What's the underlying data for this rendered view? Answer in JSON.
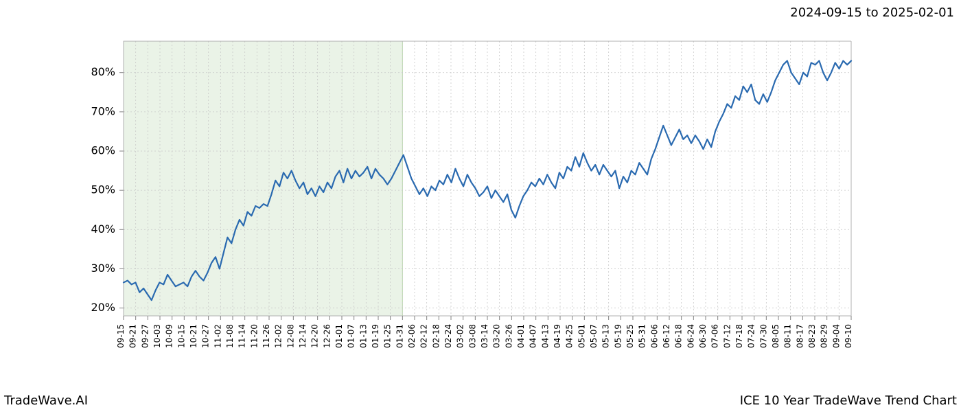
{
  "header": {
    "date_range": "2024-09-15 to 2025-02-01"
  },
  "footer": {
    "left": "TradeWave.AI",
    "right": "ICE 10 Year TradeWave Trend Chart"
  },
  "chart": {
    "type": "line",
    "background_color": "#ffffff",
    "line_color": "#2a6ab0",
    "line_width": 2.2,
    "grid_color": "#c8c8c8",
    "grid_dash": "2,3",
    "highlight": {
      "fill": "#d9ead3",
      "fill_opacity": 0.55,
      "stroke": "#b6d7a8",
      "stroke_width": 1,
      "x_start_index": 0,
      "x_end_index": 23
    },
    "yaxis": {
      "ylim": [
        18,
        88
      ],
      "ticks": [
        20,
        30,
        40,
        50,
        60,
        70,
        80
      ],
      "tick_labels": [
        "20%",
        "30%",
        "40%",
        "50%",
        "60%",
        "70%",
        "80%"
      ],
      "label_fontsize": 16
    },
    "xaxis": {
      "ticks": [
        "09-15",
        "09-21",
        "09-27",
        "10-03",
        "10-09",
        "10-15",
        "10-21",
        "10-27",
        "11-02",
        "11-08",
        "11-14",
        "11-20",
        "11-26",
        "12-02",
        "12-08",
        "12-14",
        "12-20",
        "12-26",
        "01-01",
        "01-07",
        "01-13",
        "01-19",
        "01-25",
        "01-31",
        "02-06",
        "02-12",
        "02-18",
        "02-24",
        "03-02",
        "03-08",
        "03-14",
        "03-20",
        "03-26",
        "04-01",
        "04-07",
        "04-13",
        "04-19",
        "04-25",
        "05-01",
        "05-07",
        "05-13",
        "05-19",
        "05-25",
        "05-31",
        "06-06",
        "06-12",
        "06-18",
        "06-24",
        "06-30",
        "07-06",
        "07-12",
        "07-18",
        "07-24",
        "07-30",
        "08-05",
        "08-11",
        "08-17",
        "08-23",
        "08-29",
        "09-04",
        "09-10"
      ],
      "label_fontsize": 12,
      "rotation": 90
    },
    "series": {
      "values": [
        26.5,
        27.0,
        26.0,
        26.5,
        24.0,
        25.0,
        23.5,
        22.0,
        24.5,
        26.5,
        26.0,
        28.5,
        27.0,
        25.5,
        26.0,
        26.5,
        25.5,
        28.0,
        29.5,
        28.0,
        27.0,
        29.0,
        31.5,
        33.0,
        30.0,
        34.0,
        38.0,
        36.5,
        40.0,
        42.5,
        41.0,
        44.5,
        43.5,
        46.0,
        45.5,
        46.5,
        46.0,
        49.0,
        52.5,
        51.0,
        54.5,
        53.0,
        55.0,
        52.5,
        50.5,
        52.0,
        49.0,
        50.5,
        48.5,
        51.0,
        49.5,
        52.0,
        50.5,
        53.5,
        55.0,
        52.0,
        55.5,
        53.0,
        55.0,
        53.5,
        54.5,
        56.0,
        53.0,
        55.5,
        54.0,
        53.0,
        51.5,
        53.0,
        55.0,
        57.0,
        59.0,
        56.0,
        53.0,
        51.0,
        49.0,
        50.5,
        48.5,
        51.0,
        50.0,
        52.5,
        51.5,
        54.0,
        52.0,
        55.5,
        53.0,
        51.0,
        54.0,
        52.0,
        50.5,
        48.5,
        49.5,
        51.0,
        48.0,
        50.0,
        48.5,
        47.0,
        49.0,
        45.0,
        43.0,
        46.0,
        48.5,
        50.0,
        52.0,
        51.0,
        53.0,
        51.5,
        54.0,
        52.0,
        50.5,
        54.5,
        53.0,
        56.0,
        55.0,
        58.5,
        56.0,
        59.5,
        57.0,
        55.0,
        56.5,
        54.0,
        56.5,
        55.0,
        53.5,
        55.0,
        50.5,
        53.5,
        52.0,
        55.0,
        54.0,
        57.0,
        55.5,
        54.0,
        58.0,
        60.5,
        63.5,
        66.5,
        64.0,
        61.5,
        63.5,
        65.5,
        63.0,
        64.0,
        62.0,
        64.0,
        62.5,
        60.5,
        63.0,
        61.0,
        65.0,
        67.5,
        69.5,
        72.0,
        71.0,
        74.0,
        73.0,
        76.5,
        75.0,
        77.0,
        73.0,
        72.0,
        74.5,
        72.5,
        75.0,
        78.0,
        80.0,
        82.0,
        83.0,
        80.0,
        78.5,
        77.0,
        80.0,
        79.0,
        82.5,
        82.0,
        83.0,
        80.0,
        78.0,
        80.0,
        82.5,
        81.0,
        83.0,
        82.0,
        83.0
      ]
    }
  }
}
